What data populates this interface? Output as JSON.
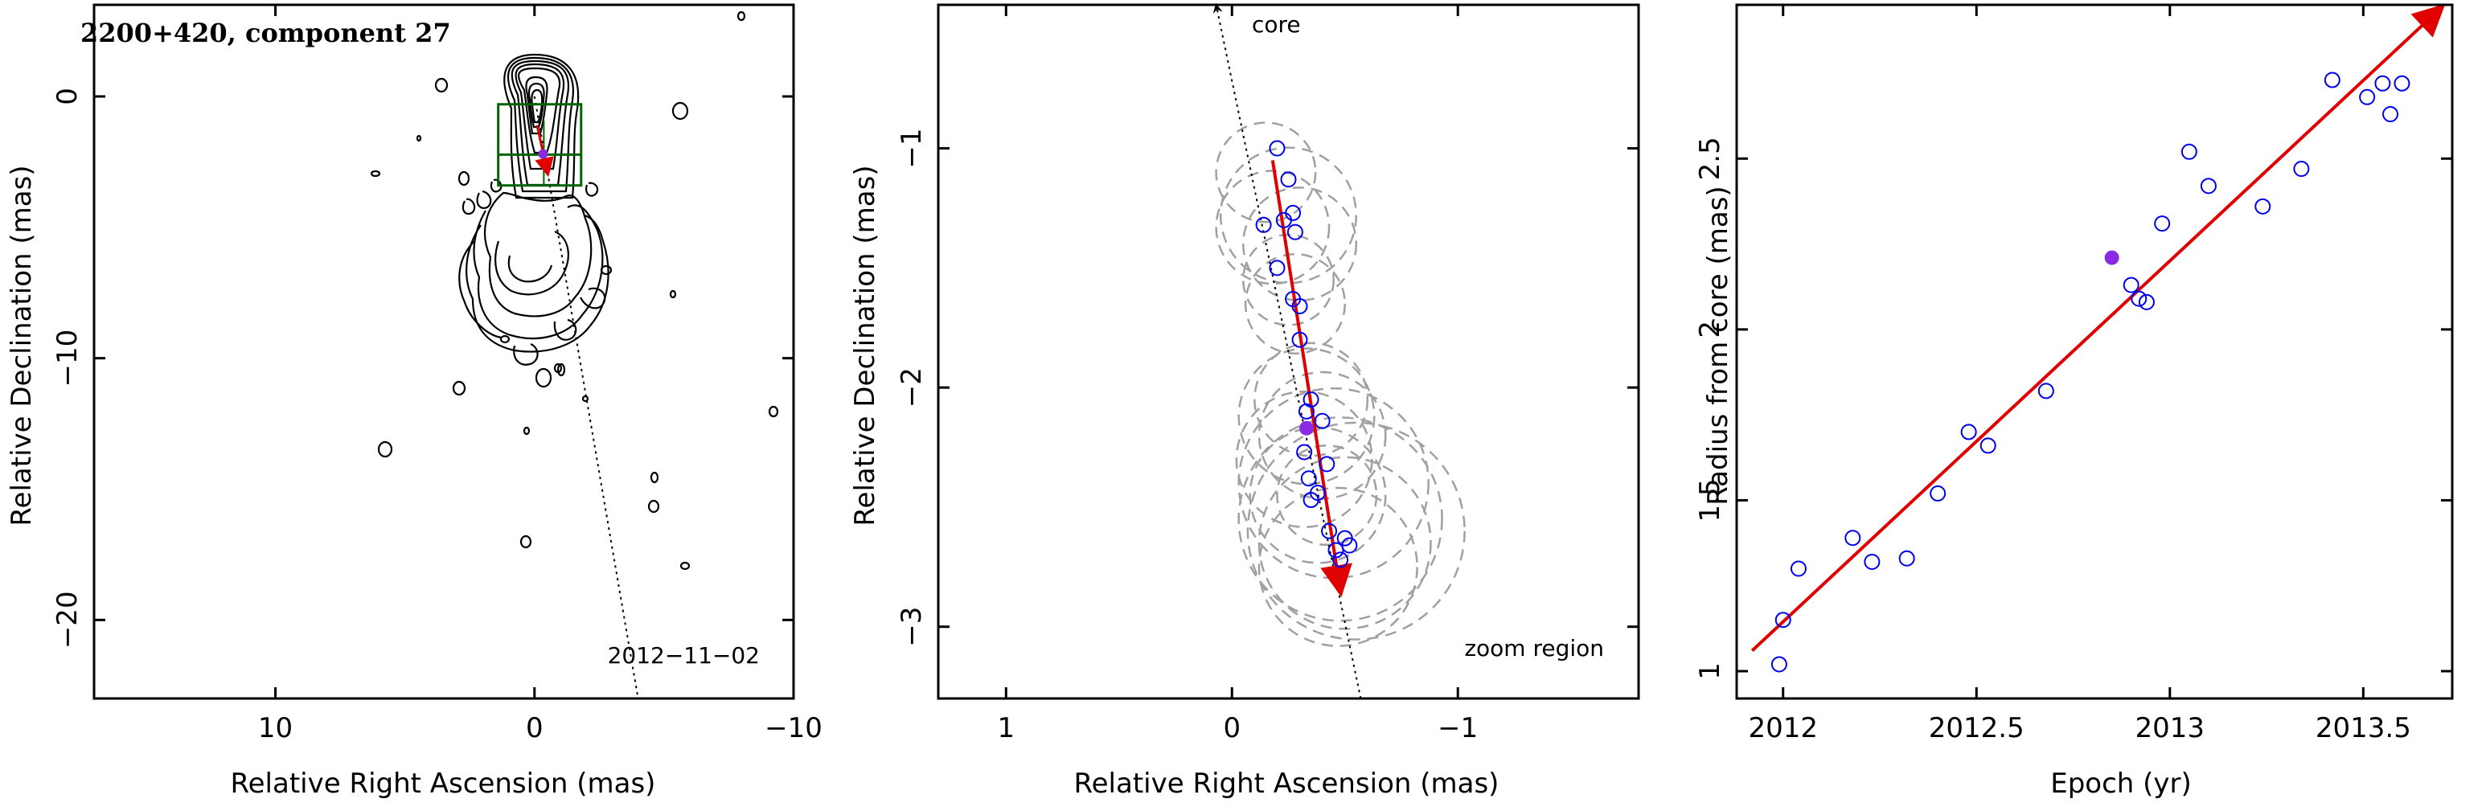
{
  "colors": {
    "trajectory": "#e00000",
    "marker": "#0000ee",
    "highlight": "#8a2be2",
    "box": "#006400",
    "dashed_circle": "#a0a0a0"
  },
  "chart_data": [
    {
      "type": "contour",
      "title": "2200+420, component 27",
      "xlabel": "Relative Right Ascension (mas)",
      "ylabel": "Relative Declination (mas)",
      "xlim": [
        17,
        -10
      ],
      "ylim": [
        -23,
        3.5
      ],
      "xticks": [
        {
          "v": 10,
          "l": "10"
        },
        {
          "v": 0,
          "l": "0"
        },
        {
          "v": -10,
          "l": "−10"
        }
      ],
      "yticks": [
        {
          "v": 0,
          "l": "0"
        },
        {
          "v": -10,
          "l": "−10"
        },
        {
          "v": -20,
          "l": "−20"
        }
      ],
      "date_label": "2012−11−02",
      "zoom_box": {
        "x1": 1.4,
        "x2": -1.8,
        "y1": -3.4,
        "y2": -0.3
      },
      "guide_line": [
        [
          0,
          0
        ],
        [
          -4,
          -23
        ]
      ],
      "arrow": {
        "from": [
          -0.1,
          -1.1
        ],
        "to": [
          -0.5,
          -2.9
        ]
      },
      "highlight_point": [
        -0.33,
        -2.2
      ]
    },
    {
      "type": "scatter",
      "xlabel": "Relative Right Ascension (mas)",
      "ylabel": "Relative Declination (mas)",
      "xlim": [
        1.3,
        -1.8
      ],
      "ylim": [
        -3.3,
        -0.4
      ],
      "xticks": [
        {
          "v": 1,
          "l": "1"
        },
        {
          "v": 0,
          "l": "0"
        },
        {
          "v": -1,
          "l": "−1"
        }
      ],
      "yticks": [
        {
          "v": -1,
          "l": "−1"
        },
        {
          "v": -2,
          "l": "−2"
        },
        {
          "v": -3,
          "l": "−3"
        }
      ],
      "core_label": "core",
      "zoom_label": "zoom region",
      "guide_line": [
        [
          0.07,
          -0.4
        ],
        [
          -0.57,
          -3.3
        ]
      ],
      "arrow": {
        "from": [
          -0.18,
          -1.05
        ],
        "to": [
          -0.48,
          -2.85
        ]
      },
      "points": [
        [
          -0.2,
          -1.0
        ],
        [
          -0.25,
          -1.13
        ],
        [
          -0.27,
          -1.27
        ],
        [
          -0.23,
          -1.3
        ],
        [
          -0.14,
          -1.32
        ],
        [
          -0.28,
          -1.35
        ],
        [
          -0.2,
          -1.5
        ],
        [
          -0.27,
          -1.63
        ],
        [
          -0.3,
          -1.66
        ],
        [
          -0.3,
          -1.8
        ],
        [
          -0.35,
          -2.05
        ],
        [
          -0.33,
          -2.1
        ],
        [
          -0.4,
          -2.14
        ],
        [
          -0.32,
          -2.27
        ],
        [
          -0.42,
          -2.32
        ],
        [
          -0.34,
          -2.38
        ],
        [
          -0.38,
          -2.44
        ],
        [
          -0.35,
          -2.47
        ],
        [
          -0.43,
          -2.6
        ],
        [
          -0.5,
          -2.63
        ],
        [
          -0.52,
          -2.66
        ],
        [
          -0.46,
          -2.68
        ],
        [
          -0.48,
          -2.72
        ]
      ],
      "highlight_point": [
        -0.33,
        -2.17
      ],
      "circles": [
        [
          -0.15,
          -1.1,
          0.22
        ],
        [
          -0.25,
          -1.28,
          0.3
        ],
        [
          -0.18,
          -1.33,
          0.25
        ],
        [
          -0.3,
          -1.4,
          0.25
        ],
        [
          -0.25,
          -1.55,
          0.2
        ],
        [
          -0.28,
          -1.65,
          0.22
        ],
        [
          -0.35,
          -2.05,
          0.25
        ],
        [
          -0.33,
          -2.12,
          0.3
        ],
        [
          -0.4,
          -2.2,
          0.28
        ],
        [
          -0.32,
          -2.3,
          0.3
        ],
        [
          -0.45,
          -2.4,
          0.42
        ],
        [
          -0.38,
          -2.45,
          0.3
        ],
        [
          -0.48,
          -2.55,
          0.45
        ],
        [
          -0.5,
          -2.65,
          0.38
        ],
        [
          -0.47,
          -2.75,
          0.35
        ],
        [
          -0.42,
          -2.45,
          0.22
        ],
        [
          -0.55,
          -2.6,
          0.48
        ]
      ]
    },
    {
      "type": "scatter",
      "xlabel": "Epoch (yr)",
      "ylabel": "Radius from core (mas)",
      "xlim": [
        2011.88,
        2013.73
      ],
      "ylim": [
        0.92,
        2.95
      ],
      "xticks": [
        {
          "v": 2012,
          "l": "2012"
        },
        {
          "v": 2012.5,
          "l": "2012.5"
        },
        {
          "v": 2013,
          "l": "2013"
        },
        {
          "v": 2013.5,
          "l": "2013.5"
        }
      ],
      "yticks": [
        {
          "v": 1,
          "l": "1"
        },
        {
          "v": 1.5,
          "l": "1.5"
        },
        {
          "v": 2,
          "l": "2"
        },
        {
          "v": 2.5,
          "l": "2.5"
        }
      ],
      "points": [
        [
          2011.99,
          1.02
        ],
        [
          2012.0,
          1.15
        ],
        [
          2012.04,
          1.3
        ],
        [
          2012.18,
          1.39
        ],
        [
          2012.23,
          1.32
        ],
        [
          2012.32,
          1.33
        ],
        [
          2012.4,
          1.52
        ],
        [
          2012.48,
          1.7
        ],
        [
          2012.53,
          1.66
        ],
        [
          2012.68,
          1.82
        ],
        [
          2012.9,
          2.13
        ],
        [
          2012.92,
          2.09
        ],
        [
          2012.94,
          2.08
        ],
        [
          2012.98,
          2.31
        ],
        [
          2013.05,
          2.52
        ],
        [
          2013.1,
          2.42
        ],
        [
          2013.24,
          2.36
        ],
        [
          2013.34,
          2.47
        ],
        [
          2013.42,
          2.73
        ],
        [
          2013.51,
          2.68
        ],
        [
          2013.55,
          2.72
        ],
        [
          2013.57,
          2.63
        ],
        [
          2013.6,
          2.72
        ]
      ],
      "highlight_point": [
        2012.85,
        2.21
      ],
      "fit_line": {
        "from": [
          2011.92,
          1.06
        ],
        "to": [
          2013.7,
          2.94
        ]
      }
    }
  ]
}
